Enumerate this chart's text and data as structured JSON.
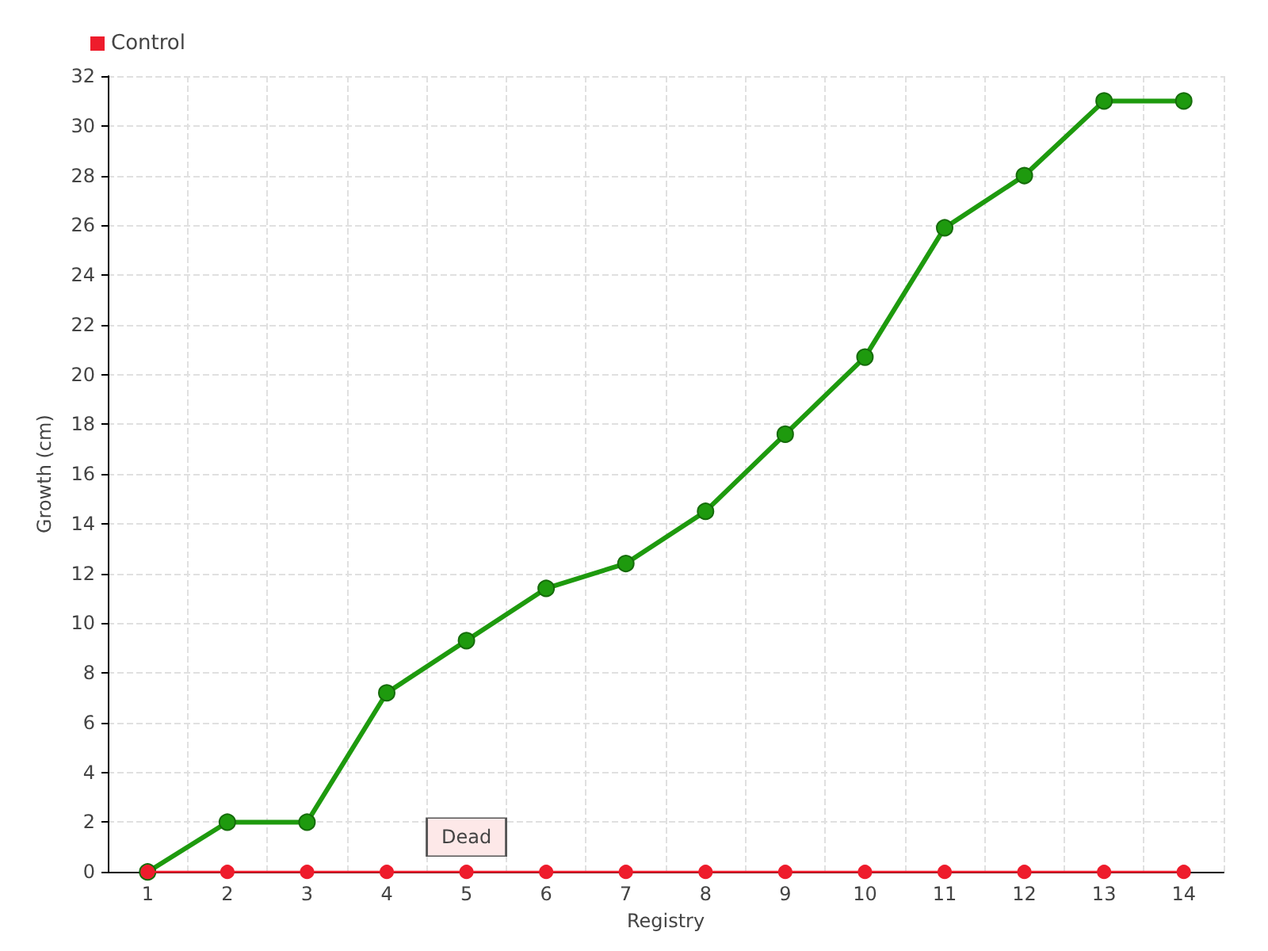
{
  "chart_data": {
    "type": "line",
    "xlabel": "Registry",
    "ylabel": "Growth (cm)",
    "categories": [
      "1",
      "2",
      "3",
      "4",
      "5",
      "6",
      "7",
      "8",
      "9",
      "10",
      "11",
      "12",
      "13",
      "14"
    ],
    "series": [
      {
        "color": "#1e9a0e",
        "values": [
          0,
          2,
          2,
          7.2,
          9.3,
          11.4,
          12.4,
          14.5,
          17.6,
          20.7,
          25.9,
          28,
          31,
          31
        ]
      },
      {
        "name": "Control",
        "color": "#ee1c2c",
        "values": [
          0,
          0,
          0,
          0,
          0,
          0,
          0,
          0,
          0,
          0,
          0,
          0,
          0,
          0
        ]
      }
    ],
    "ylim": [
      0,
      32
    ],
    "yticks": [
      0,
      2,
      4,
      6,
      8,
      10,
      12,
      14,
      16,
      18,
      20,
      22,
      24,
      26,
      28,
      30,
      32
    ],
    "grid": true,
    "legend": "top left",
    "marker": "circle",
    "annotations": [
      {
        "text": "Dead",
        "x": "5",
        "y": 0
      }
    ]
  }
}
